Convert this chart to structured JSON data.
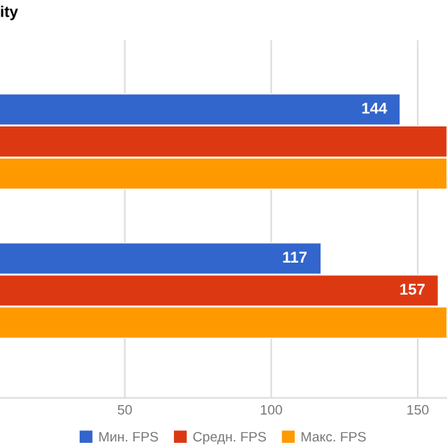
{
  "chart_data": {
    "type": "bar",
    "orientation": "horizontal",
    "title": "ity",
    "categories": [
      null,
      null
    ],
    "series": [
      {
        "name": "Мин. FPS",
        "color": "#3366cc",
        "values": [
          144,
          117
        ],
        "value_labels": [
          "144",
          "117"
        ]
      },
      {
        "name": "Средн. FPS",
        "color": "#dc3912",
        "values": [
          160,
          157
        ],
        "value_labels": [
          null,
          "157"
        ]
      },
      {
        "name": "Макс. FPS",
        "color": "#ff9900",
        "values": [
          160,
          160
        ],
        "value_labels": [
          null,
          null
        ]
      }
    ],
    "xlim": [
      7.4,
      160
    ],
    "xticks": [
      50,
      100,
      150
    ],
    "tick_labels": "x",
    "grid": "x",
    "legend": "bottom"
  }
}
